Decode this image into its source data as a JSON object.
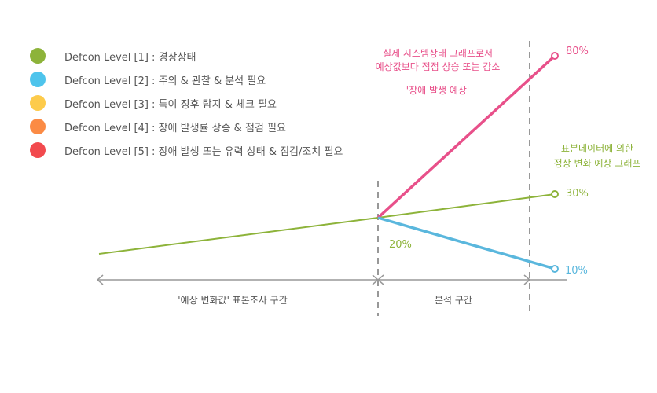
{
  "legend": {
    "items": [
      {
        "label": "Defcon Level [1] : 경상상태",
        "color": "#8db33a"
      },
      {
        "label": "Defcon Level [2] : 주의 & 관찰 & 분석 필요",
        "color": "#4ec4ec"
      },
      {
        "label": "Defcon Level [3] : 특이 징후 탐지 & 체크 필요",
        "color": "#fdcb4b"
      },
      {
        "label": "Defcon Level [4] : 장애 발생률 상승 & 점검 필요",
        "color": "#fb8b45"
      },
      {
        "label": "Defcon Level [5] : 장애 발생 또는 유력 상태 & 점검/조치 필요",
        "color": "#f24a4e"
      }
    ]
  },
  "annotations": {
    "actual_line1": "실제 시스템상태 그래프로서",
    "actual_line2": "예상값보다 점점 상승 또는 감소",
    "failure": "'장애 발생 예상'",
    "standard_line1": "표본데이터에 의한",
    "standard_line2": "정상 변화 예상 그래프"
  },
  "chart_data": {
    "type": "line",
    "series": [
      {
        "color": "#8db33a",
        "x": [
          0,
          1,
          2
        ],
        "y": [
          0,
          20,
          30
        ]
      },
      {
        "color": "#e8508a",
        "x": [
          1,
          2
        ],
        "y": [
          20,
          80
        ]
      },
      {
        "color": "#5ab7dd",
        "x": [
          1,
          2
        ],
        "y": [
          20,
          10
        ]
      }
    ],
    "labels": {
      "pink_end": "80%",
      "green_end": "30%",
      "blue_end": "10%",
      "split": "20%"
    },
    "sections": [
      {
        "label": "'예상 변화값' 표본조사 구간"
      },
      {
        "label": "분석 구간"
      }
    ],
    "colors": {
      "axis": "#999999",
      "divider": "#777777",
      "text_label": "#555555"
    }
  }
}
